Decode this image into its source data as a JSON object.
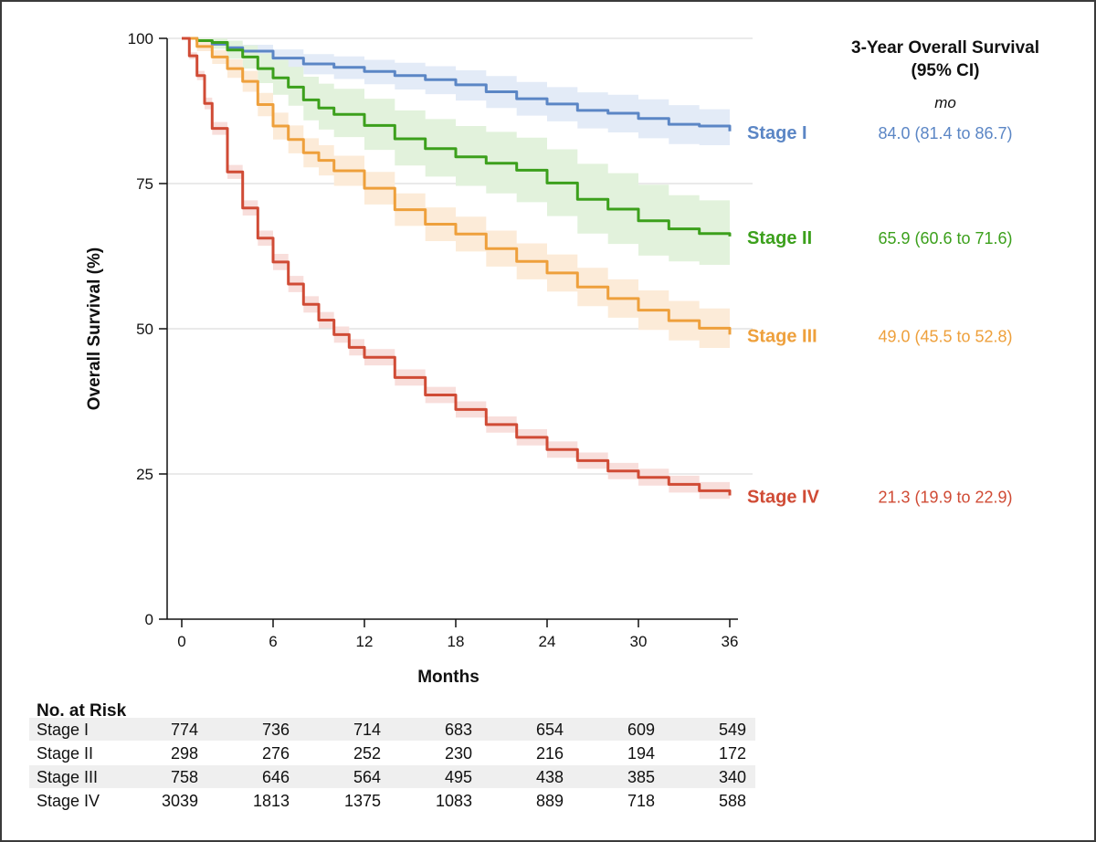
{
  "chart_data": {
    "type": "line",
    "title": "",
    "xlabel": "Months",
    "ylabel": "Overall Survival (%)",
    "xlim": [
      0,
      36
    ],
    "ylim": [
      0,
      100
    ],
    "x_ticks": [
      "0",
      "6",
      "12",
      "18",
      "24",
      "30",
      "36"
    ],
    "y_ticks": [
      "0",
      "25",
      "50",
      "75",
      "100"
    ],
    "gridlines_y": [
      25,
      50,
      75,
      100
    ],
    "legend_title": "3-Year Overall Survival (95% CI)",
    "legend_title_line1": "3-Year Overall Survival",
    "legend_title_line2": "(95% CI)",
    "legend_unit": "mo",
    "series": [
      {
        "name": "Stage I",
        "color": "#5b86c5",
        "band_color": "#e3ebf7",
        "ci_text": "84.0 (81.4 to 86.7)",
        "x": [
          0,
          1,
          2,
          3,
          4,
          6,
          8,
          10,
          12,
          14,
          16,
          18,
          20,
          22,
          24,
          26,
          28,
          30,
          32,
          34,
          36
        ],
        "values": [
          100,
          99.6,
          99.0,
          98.4,
          97.8,
          96.6,
          95.6,
          95.0,
          94.3,
          93.6,
          92.9,
          92.0,
          90.8,
          89.6,
          88.7,
          87.6,
          87.1,
          86.2,
          85.2,
          84.9,
          84.0
        ],
        "ci_lower": [
          100,
          99.2,
          98.3,
          97.4,
          96.6,
          95.0,
          93.8,
          93.0,
          92.1,
          91.2,
          90.4,
          89.3,
          88.0,
          86.7,
          85.7,
          84.5,
          83.8,
          82.8,
          81.8,
          81.6,
          81.4
        ],
        "ci_upper": [
          100,
          100,
          99.7,
          99.3,
          98.9,
          98.1,
          97.3,
          96.9,
          96.3,
          95.8,
          95.2,
          94.5,
          93.5,
          92.5,
          91.6,
          90.7,
          90.3,
          89.5,
          88.5,
          87.8,
          86.7
        ]
      },
      {
        "name": "Stage II",
        "color": "#3ca01c",
        "band_color": "#e2f2dc",
        "ci_text": "65.9 (60.6 to 71.6)",
        "x": [
          0,
          1,
          2,
          3,
          4,
          5,
          6,
          7,
          8,
          9,
          10,
          12,
          14,
          16,
          18,
          20,
          22,
          24,
          26,
          28,
          30,
          32,
          34,
          36
        ],
        "values": [
          100,
          99.6,
          99.3,
          98.0,
          96.8,
          94.8,
          93.2,
          91.6,
          89.4,
          88.0,
          86.9,
          85.0,
          82.7,
          81.0,
          79.6,
          78.5,
          77.3,
          75.1,
          72.3,
          70.6,
          68.6,
          67.2,
          66.4,
          65.9
        ],
        "ci_lower": [
          100,
          99.0,
          98.2,
          96.5,
          94.8,
          92.3,
          90.3,
          88.4,
          85.9,
          84.3,
          83.0,
          80.8,
          78.1,
          76.2,
          74.6,
          73.3,
          71.8,
          69.4,
          66.4,
          64.6,
          62.6,
          61.6,
          61.0,
          60.6
        ],
        "ci_upper": [
          100,
          100,
          100,
          99.6,
          98.8,
          97.4,
          96.3,
          95.1,
          93.4,
          92.2,
          91.3,
          89.6,
          87.6,
          86.1,
          84.9,
          83.9,
          82.9,
          80.9,
          78.4,
          76.8,
          74.8,
          73.0,
          72.1,
          71.6
        ]
      },
      {
        "name": "Stage III",
        "color": "#eea03c",
        "band_color": "#fcebd8",
        "ci_text": "49.0 (45.5 to 52.8)",
        "x": [
          0,
          1,
          2,
          3,
          4,
          5,
          6,
          7,
          8,
          9,
          10,
          12,
          14,
          16,
          18,
          20,
          22,
          24,
          26,
          28,
          30,
          32,
          34,
          36
        ],
        "values": [
          100,
          98.6,
          96.8,
          94.8,
          92.6,
          88.6,
          84.9,
          82.6,
          80.3,
          79.0,
          77.2,
          74.2,
          70.5,
          68.0,
          66.3,
          63.8,
          61.6,
          59.6,
          57.2,
          55.2,
          53.2,
          51.4,
          50.1,
          49.0
        ],
        "ci_lower": [
          100,
          97.8,
          95.6,
          93.2,
          90.8,
          86.6,
          82.6,
          80.2,
          77.8,
          76.4,
          74.6,
          71.4,
          67.7,
          65.1,
          63.3,
          60.7,
          58.5,
          56.4,
          53.9,
          51.9,
          49.8,
          48.0,
          46.7,
          45.5
        ],
        "ci_upper": [
          100,
          99.4,
          98.0,
          96.4,
          94.4,
          90.6,
          87.2,
          85.0,
          82.8,
          81.6,
          79.8,
          77.0,
          73.3,
          70.9,
          69.3,
          66.9,
          64.7,
          62.8,
          60.5,
          58.5,
          56.6,
          54.8,
          53.5,
          52.8
        ]
      },
      {
        "name": "Stage IV",
        "color": "#d04b35",
        "band_color": "#f8dedb",
        "ci_text": "21.3 (19.9 to 22.9)",
        "x": [
          0,
          0.5,
          1,
          1.5,
          2,
          3,
          4,
          5,
          6,
          7,
          8,
          9,
          10,
          11,
          12,
          14,
          16,
          18,
          20,
          22,
          24,
          26,
          28,
          30,
          32,
          34,
          36
        ],
        "values": [
          100,
          97.0,
          93.6,
          88.8,
          84.5,
          77.0,
          70.8,
          65.6,
          61.5,
          57.7,
          54.2,
          51.5,
          49.0,
          46.8,
          45.1,
          41.6,
          38.6,
          36.1,
          33.5,
          31.3,
          29.2,
          27.3,
          25.5,
          24.4,
          23.2,
          22.1,
          21.3
        ],
        "ci_lower": [
          100,
          96.4,
          92.8,
          87.8,
          83.4,
          75.8,
          69.5,
          64.3,
          60.1,
          56.3,
          52.8,
          50.1,
          47.6,
          45.4,
          43.7,
          40.2,
          37.2,
          34.7,
          32.1,
          29.9,
          27.8,
          25.9,
          24.1,
          23.0,
          21.8,
          20.7,
          19.9
        ],
        "ci_upper": [
          100,
          97.6,
          94.4,
          89.8,
          85.6,
          78.2,
          72.1,
          66.9,
          62.9,
          59.1,
          55.6,
          52.9,
          50.4,
          48.2,
          46.5,
          43.0,
          40.0,
          37.5,
          34.9,
          32.7,
          30.6,
          28.7,
          26.9,
          25.9,
          24.7,
          23.6,
          22.9
        ]
      }
    ]
  },
  "risk_table": {
    "title": "No. at Risk",
    "rows": [
      {
        "label": "Stage I",
        "values": [
          "774",
          "736",
          "714",
          "683",
          "654",
          "609",
          "549"
        ]
      },
      {
        "label": "Stage II",
        "values": [
          "298",
          "276",
          "252",
          "230",
          "216",
          "194",
          "172"
        ]
      },
      {
        "label": "Stage III",
        "values": [
          "758",
          "646",
          "564",
          "495",
          "438",
          "385",
          "340"
        ]
      },
      {
        "label": "Stage IV",
        "values": [
          "3039",
          "1813",
          "1375",
          "1083",
          "889",
          "718",
          "588"
        ]
      }
    ]
  }
}
